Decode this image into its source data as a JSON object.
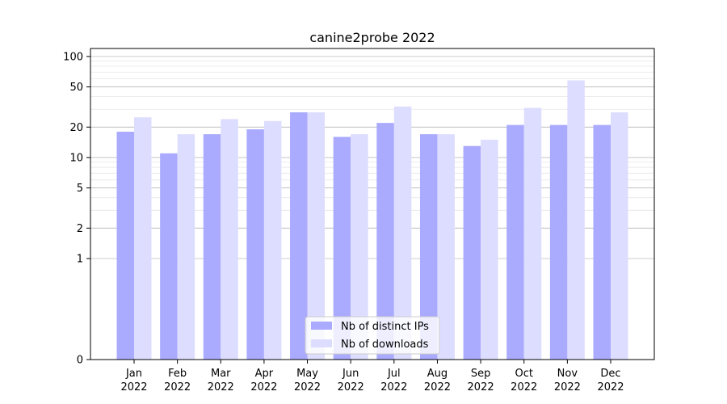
{
  "chart_data": {
    "type": "bar",
    "title": "canine2probe 2022",
    "xlabel": "",
    "ylabel": "",
    "y_scale": "symlog",
    "ylim": [
      0,
      120
    ],
    "y_ticks": [
      "0",
      "1",
      "2",
      "5",
      "10",
      "20",
      "50",
      "100"
    ],
    "categories": [
      [
        "Jan",
        "2022"
      ],
      [
        "Feb",
        "2022"
      ],
      [
        "Mar",
        "2022"
      ],
      [
        "Apr",
        "2022"
      ],
      [
        "May",
        "2022"
      ],
      [
        "Jun",
        "2022"
      ],
      [
        "Jul",
        "2022"
      ],
      [
        "Aug",
        "2022"
      ],
      [
        "Sep",
        "2022"
      ],
      [
        "Oct",
        "2022"
      ],
      [
        "Nov",
        "2022"
      ],
      [
        "Dec",
        "2022"
      ]
    ],
    "series": [
      {
        "name": "Nb of distinct IPs",
        "color": "#aaaaff",
        "values": [
          18,
          11,
          17,
          19,
          28,
          16,
          22,
          17,
          13,
          21,
          21,
          21
        ]
      },
      {
        "name": "Nb of downloads",
        "color": "#ddddff",
        "values": [
          25,
          17,
          24,
          23,
          28,
          17,
          32,
          17,
          15,
          31,
          58,
          28
        ]
      }
    ],
    "legend_position": "bottom-center",
    "grid": "horizontal"
  }
}
